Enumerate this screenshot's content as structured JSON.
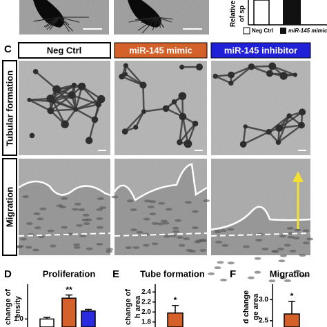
{
  "top_chart": {
    "y_label": [
      "Relative",
      "of sp"
    ],
    "legend": [
      "Neg Ctrl",
      "miR-145 mimic"
    ]
  },
  "panel_c": {
    "label": "C",
    "columns": [
      "Neg Ctrl",
      "miR-145 mimic",
      "miR-145 inhibitor"
    ],
    "rows": [
      "Tubular formation",
      "Migration"
    ]
  },
  "charts": [
    {
      "label": "D",
      "title": "Proliferation",
      "y_label": [
        "change of",
        "ensity"
      ],
      "type": "bar",
      "ylim": [
        0.95,
        1.2
      ],
      "yticks": [
        {
          "value": 1,
          "label": "1.0"
        }
      ],
      "series": {
        "colors": [
          "#ffffff",
          "#d4602a",
          "#2a2ae0"
        ],
        "values": [
          1,
          1.13,
          1.05
        ],
        "errors": [
          0.01,
          0.02,
          0.01
        ]
      },
      "significance": [
        null,
        "**",
        null
      ]
    },
    {
      "label": "E",
      "title": "Tube formation",
      "y_label": [
        "change of",
        "h area"
      ],
      "type": "bar",
      "ylim": [
        1.7,
        2.5
      ],
      "yticks": [
        1.8,
        {
          "value": 2,
          "label": "2.0"
        },
        2.2,
        2.4
      ],
      "series": {
        "colors": [
          "#d4602a"
        ],
        "values": [
          1.98
        ],
        "errors": [
          0.15
        ]
      },
      "significance": [
        "*"
      ]
    },
    {
      "label": "F",
      "title": "Migration",
      "y_label": [
        "d change",
        "ge area"
      ],
      "type": "bar",
      "ylim": [
        2.35,
        3.3
      ],
      "yticks": [
        2.5,
        {
          "value": 3,
          "label": "3.0"
        }
      ],
      "series": {
        "colors": [
          "#d4602a"
        ],
        "values": [
          2.66
        ],
        "errors": [
          0.3
        ]
      },
      "significance": [
        "*"
      ]
    }
  ]
}
